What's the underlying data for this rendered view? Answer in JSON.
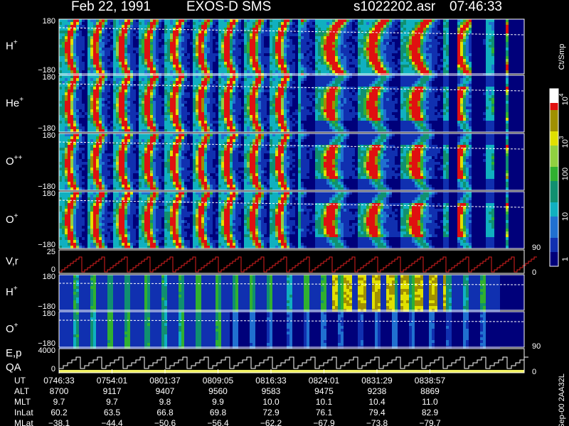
{
  "header": {
    "date": "Feb 22, 1991",
    "instrument": "EXOS-D SMS",
    "file": "s1022202.asr",
    "time": "07:46:33"
  },
  "panels": [
    {
      "name": "H",
      "charge": "+",
      "top": "180",
      "bottom": "−180"
    },
    {
      "name": "He",
      "charge": "+",
      "top": "180",
      "bottom": "−180"
    },
    {
      "name": "O",
      "charge": "++",
      "top": "180",
      "bottom": "−180"
    },
    {
      "name": "O",
      "charge": "+",
      "top": "180",
      "bottom": "−180",
      "right": "90"
    },
    {
      "name": "V,r",
      "top": "25",
      "bottom": "0",
      "right": "0"
    },
    {
      "name": "H",
      "charge": "+",
      "top": "180",
      "bottom": "−180"
    },
    {
      "name": "O",
      "charge": "+",
      "top": "180",
      "bottom": "−180",
      "right": "90"
    },
    {
      "name": "E,p",
      "name2": "QA",
      "top": "4000",
      "bottom": "0",
      "right": "0"
    }
  ],
  "colorbar": {
    "label": "Ct/Smp",
    "ticks": [
      {
        "base": "10",
        "exp": "4"
      },
      {
        "base": "10",
        "exp": "3"
      },
      {
        "base": "100"
      },
      {
        "base": "10"
      },
      {
        "base": "1"
      }
    ]
  },
  "footer": {
    "rows": [
      {
        "label": "UT",
        "values": [
          "0746:33",
          "0754:01",
          "0801:37",
          "0809:05",
          "0816:33",
          "0824:01",
          "0831:29",
          "0838:57"
        ]
      },
      {
        "label": "ALT",
        "values": [
          "8700",
          "9117",
          "9407",
          "9560",
          "9583",
          "9475",
          "9238",
          "8869"
        ]
      },
      {
        "label": "MLT",
        "values": [
          "9.7",
          "9.7",
          "9.8",
          "9.9",
          "10.0",
          "10.1",
          "10.4",
          "11.0"
        ]
      },
      {
        "label": "InLat",
        "values": [
          "60.2",
          "63.5",
          "66.8",
          "69.8",
          "72.9",
          "76.1",
          "79.4",
          "82.9"
        ]
      },
      {
        "label": "MLat",
        "values": [
          "−38.1",
          "−44.4",
          "−50.6",
          "−56.4",
          "−62.2",
          "−67.9",
          "−73.8",
          "−79.7"
        ]
      }
    ],
    "note": "Sep-00  2AA32L"
  }
}
